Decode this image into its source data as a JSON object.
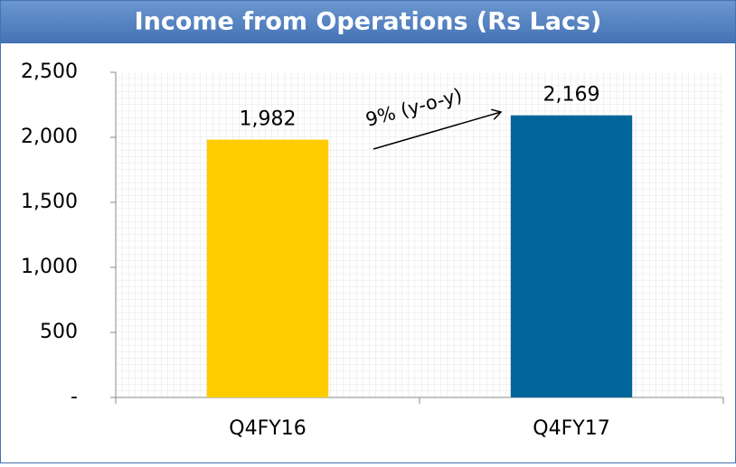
{
  "chart_data": {
    "type": "bar",
    "title": "Income from Operations (Rs Lacs)",
    "categories": [
      "Q4FY16",
      "Q4FY17"
    ],
    "values": [
      1982,
      2169
    ],
    "value_labels": [
      "1,982",
      "2,169"
    ],
    "colors": [
      "#ffcc00",
      "#006699"
    ],
    "ylim": [
      0,
      2500
    ],
    "yticks": [
      {
        "value": 0,
        "label": "-"
      },
      500,
      {
        "value": 1000,
        "label": "1,000"
      },
      {
        "value": 1500,
        "label": "1,500"
      },
      {
        "value": 2000,
        "label": "2,000"
      },
      {
        "value": 2500,
        "label": "2,500"
      }
    ],
    "grid": true,
    "annotation": "9% (y-o-y)"
  }
}
